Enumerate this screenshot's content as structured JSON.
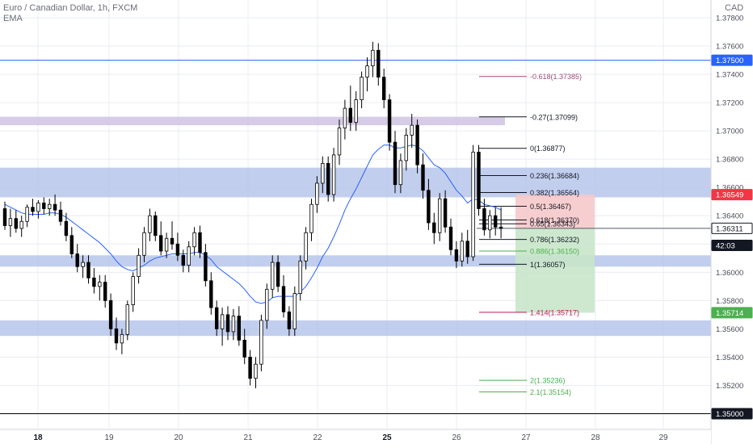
{
  "header": {
    "symbol_line": "Euro / Canadian Dollar, 1h, FXCM",
    "indicator": "EMA",
    "currency": "CAD"
  },
  "colors": {
    "bull": "#ffffff",
    "bear": "#000000",
    "wick": "#000000",
    "ema": "#2962ff",
    "zone_blue": "#b7c6ea",
    "zone_purple": "#cfc3e3",
    "tp_zone": "#c8e6c9",
    "sl_zone": "#f6c9ca",
    "grid": "#e9ecf2",
    "axis_text": "#4a4e59",
    "price_badge": "#2a2e39",
    "line_badge": "#2962ff",
    "high_badge": "#f23645",
    "target_badge": "#4caf50"
  },
  "chart_data": {
    "type": "candlestick",
    "x_axis_labels": [
      "18",
      "19",
      "20",
      "21",
      "22",
      "25",
      "26",
      "27",
      "28",
      "29"
    ],
    "y_axis_ticks": [
      "1.37800",
      "1.37600",
      "1.37400",
      "1.37200",
      "1.37000",
      "1.36800",
      "1.36600",
      "1.36400",
      "1.36200",
      "1.36000",
      "1.35800",
      "1.35600",
      "1.35400",
      "1.35200"
    ],
    "y_range": [
      1.349,
      1.3788
    ],
    "candles": [
      [
        1.3645,
        1.365,
        1.363,
        1.3633
      ],
      [
        1.3633,
        1.3645,
        1.3625,
        1.3638
      ],
      [
        1.3638,
        1.3644,
        1.3628,
        1.3631
      ],
      [
        1.3631,
        1.364,
        1.3625,
        1.3636
      ],
      [
        1.3636,
        1.3648,
        1.3632,
        1.3646
      ],
      [
        1.3646,
        1.3652,
        1.364,
        1.3643
      ],
      [
        1.3643,
        1.3651,
        1.3638,
        1.3649
      ],
      [
        1.3649,
        1.3653,
        1.3641,
        1.3645
      ],
      [
        1.3645,
        1.3652,
        1.364,
        1.3648
      ],
      [
        1.3648,
        1.3655,
        1.364,
        1.3644
      ],
      [
        1.3644,
        1.365,
        1.3633,
        1.3636
      ],
      [
        1.3636,
        1.3642,
        1.3622,
        1.3626
      ],
      [
        1.3626,
        1.3632,
        1.361,
        1.3613
      ],
      [
        1.3613,
        1.362,
        1.36,
        1.3604
      ],
      [
        1.3604,
        1.3612,
        1.3596,
        1.3607
      ],
      [
        1.3607,
        1.3612,
        1.3592,
        1.3596
      ],
      [
        1.3596,
        1.3603,
        1.3585,
        1.359
      ],
      [
        1.359,
        1.3598,
        1.358,
        1.3593
      ],
      [
        1.3593,
        1.3598,
        1.3575,
        1.358
      ],
      [
        1.358,
        1.3585,
        1.3555,
        1.356
      ],
      [
        1.356,
        1.3568,
        1.3545,
        1.355
      ],
      [
        1.355,
        1.356,
        1.3542,
        1.3556
      ],
      [
        1.3556,
        1.358,
        1.3552,
        1.3577
      ],
      [
        1.3577,
        1.36,
        1.3572,
        1.3597
      ],
      [
        1.3597,
        1.3617,
        1.3592,
        1.3612
      ],
      [
        1.3612,
        1.3632,
        1.3607,
        1.3628
      ],
      [
        1.3628,
        1.3645,
        1.3622,
        1.364
      ],
      [
        1.364,
        1.3643,
        1.3622,
        1.3626
      ],
      [
        1.3626,
        1.3636,
        1.3612,
        1.3615
      ],
      [
        1.3615,
        1.3628,
        1.361,
        1.3624
      ],
      [
        1.3624,
        1.3636,
        1.3616,
        1.362
      ],
      [
        1.362,
        1.3628,
        1.3608,
        1.3612
      ],
      [
        1.3612,
        1.3616,
        1.36,
        1.3605
      ],
      [
        1.3605,
        1.3622,
        1.36,
        1.3618
      ],
      [
        1.3618,
        1.3632,
        1.3612,
        1.3628
      ],
      [
        1.3628,
        1.3633,
        1.361,
        1.3614
      ],
      [
        1.3614,
        1.362,
        1.359,
        1.3594
      ],
      [
        1.3594,
        1.36,
        1.357,
        1.3575
      ],
      [
        1.3575,
        1.358,
        1.3555,
        1.356
      ],
      [
        1.356,
        1.3575,
        1.3548,
        1.357
      ],
      [
        1.357,
        1.3576,
        1.3552,
        1.3558
      ],
      [
        1.3558,
        1.3574,
        1.3552,
        1.3569
      ],
      [
        1.3569,
        1.3576,
        1.3548,
        1.3552
      ],
      [
        1.3552,
        1.356,
        1.3535,
        1.354
      ],
      [
        1.354,
        1.3545,
        1.352,
        1.3525
      ],
      [
        1.3525,
        1.354,
        1.3518,
        1.3535
      ],
      [
        1.3535,
        1.357,
        1.353,
        1.3566
      ],
      [
        1.3566,
        1.3592,
        1.356,
        1.3588
      ],
      [
        1.3588,
        1.3612,
        1.3582,
        1.3607
      ],
      [
        1.3607,
        1.3612,
        1.3586,
        1.359
      ],
      [
        1.359,
        1.3598,
        1.3568,
        1.3572
      ],
      [
        1.3572,
        1.3576,
        1.3555,
        1.356
      ],
      [
        1.356,
        1.359,
        1.3555,
        1.3585
      ],
      [
        1.3585,
        1.3612,
        1.358,
        1.3608
      ],
      [
        1.3608,
        1.3632,
        1.3602,
        1.3628
      ],
      [
        1.3628,
        1.3652,
        1.3622,
        1.3648
      ],
      [
        1.3648,
        1.3668,
        1.3642,
        1.3663
      ],
      [
        1.3663,
        1.3682,
        1.3656,
        1.3677
      ],
      [
        1.3677,
        1.3682,
        1.365,
        1.3655
      ],
      [
        1.3655,
        1.3688,
        1.365,
        1.3683
      ],
      [
        1.3683,
        1.3708,
        1.3676,
        1.3702
      ],
      [
        1.3702,
        1.3722,
        1.3694,
        1.3716
      ],
      [
        1.3716,
        1.3732,
        1.37,
        1.3706
      ],
      [
        1.3706,
        1.3728,
        1.37,
        1.3722
      ],
      [
        1.3722,
        1.3742,
        1.3716,
        1.3738
      ],
      [
        1.3738,
        1.3752,
        1.3728,
        1.3746
      ],
      [
        1.3746,
        1.3763,
        1.3738,
        1.3757
      ],
      [
        1.3757,
        1.3762,
        1.3732,
        1.3738
      ],
      [
        1.3738,
        1.3744,
        1.3716,
        1.3722
      ],
      [
        1.3722,
        1.3726,
        1.3686,
        1.3692
      ],
      [
        1.3692,
        1.37,
        1.3656,
        1.3662
      ],
      [
        1.3662,
        1.3684,
        1.3656,
        1.3679
      ],
      [
        1.3679,
        1.3702,
        1.3672,
        1.3697
      ],
      [
        1.3697,
        1.3712,
        1.3688,
        1.3704
      ],
      [
        1.3704,
        1.3708,
        1.367,
        1.3676
      ],
      [
        1.3676,
        1.3684,
        1.3652,
        1.3658
      ],
      [
        1.3658,
        1.3666,
        1.363,
        1.3635
      ],
      [
        1.3635,
        1.3642,
        1.362,
        1.3628
      ],
      [
        1.3628,
        1.3656,
        1.3622,
        1.3652
      ],
      [
        1.3652,
        1.3658,
        1.3628,
        1.3632
      ],
      [
        1.3632,
        1.3638,
        1.3612,
        1.3616
      ],
      [
        1.3616,
        1.3622,
        1.3603,
        1.3608
      ],
      [
        1.3608,
        1.3628,
        1.3604,
        1.3622
      ],
      [
        1.3622,
        1.363,
        1.3606,
        1.3611
      ],
      [
        1.3611,
        1.369,
        1.3608,
        1.3685
      ],
      [
        1.3685,
        1.369,
        1.364,
        1.3645
      ],
      [
        1.3645,
        1.3652,
        1.3626,
        1.363
      ],
      [
        1.363,
        1.3644,
        1.3624,
        1.364
      ],
      [
        1.364,
        1.3646,
        1.3626,
        1.3632
      ],
      [
        1.3632,
        1.3646,
        1.3624,
        1.3631
      ]
    ],
    "ema_values": [
      1.3648,
      1.3646,
      1.3644,
      1.3642,
      1.3641,
      1.3641,
      1.3641,
      1.3641,
      1.3642,
      1.3642,
      1.3641,
      1.3639,
      1.3636,
      1.3633,
      1.363,
      1.3627,
      1.3624,
      1.3621,
      1.3617,
      1.3613,
      1.3608,
      1.3604,
      1.3602,
      1.3601,
      1.3603,
      1.3605,
      1.3608,
      1.361,
      1.3611,
      1.3612,
      1.3613,
      1.3613,
      1.3613,
      1.3613,
      1.3614,
      1.3614,
      1.3612,
      1.3609,
      1.3604,
      1.3601,
      1.3598,
      1.3595,
      1.3592,
      1.3588,
      1.3583,
      1.3579,
      1.3578,
      1.3579,
      1.3582,
      1.3583,
      1.3583,
      1.3583,
      1.3583,
      1.3586,
      1.359,
      1.3596,
      1.3603,
      1.3611,
      1.3617,
      1.3625,
      1.3634,
      1.3644,
      1.3652,
      1.3659,
      1.3667,
      1.3675,
      1.3683,
      1.3687,
      1.369,
      1.369,
      1.3688,
      1.3688,
      1.3689,
      1.369,
      1.3689,
      1.3686,
      1.3681,
      1.3676,
      1.3674,
      1.367,
      1.3664,
      1.3658,
      1.3654,
      1.3649,
      1.3652,
      1.3651,
      1.3648,
      1.3647,
      1.3646,
      1.3644
    ],
    "horizontal_lines": [
      {
        "price": 1.375,
        "label": "1.37500",
        "color": "#2962ff",
        "badge": "#2962ff"
      },
      {
        "price": 1.35,
        "label": "1.35000",
        "color": "#000000",
        "badge": "#131722"
      }
    ],
    "zones": [
      {
        "top": 1.371,
        "bottom": 1.3704,
        "color": "#cfc3e3"
      },
      {
        "top": 1.3674,
        "bottom": 1.3653,
        "color": "#b7c6ea"
      },
      {
        "top": 1.3612,
        "bottom": 1.3604,
        "color": "#b7c6ea"
      },
      {
        "top": 1.3566,
        "bottom": 1.3555,
        "color": "#b7c6ea"
      }
    ],
    "fib_levels": [
      {
        "label": "-0.618(1.37385)",
        "price": 1.37385,
        "color": "#9c4c7c"
      },
      {
        "label": "-0.27(1.37099)",
        "price": 1.37099,
        "color": "#131722"
      },
      {
        "label": "0(1.36877)",
        "price": 1.36877,
        "color": "#131722"
      },
      {
        "label": "0.236(1.36684)",
        "price": 1.36684,
        "color": "#131722"
      },
      {
        "label": "0.382(1.36564)",
        "price": 1.36564,
        "color": "#131722"
      },
      {
        "label": "0.5(1.36467)",
        "price": 1.36467,
        "color": "#131722"
      },
      {
        "label": "0.618(1.36370)",
        "price": 1.3637,
        "color": "#131722"
      },
      {
        "label": "0.65(1.36343)",
        "price": 1.36343,
        "color": "#131722"
      },
      {
        "label": "0.786(1.36232)",
        "price": 1.36232,
        "color": "#131722"
      },
      {
        "label": "0.886(1.36150)",
        "price": 1.3615,
        "color": "#4caf50"
      },
      {
        "label": "1(1.36057)",
        "price": 1.36057,
        "color": "#131722"
      },
      {
        "label": "1.414(1.35717)",
        "price": 1.35717,
        "color": "#c2185b"
      },
      {
        "label": "2(1.35236)",
        "price": 1.35236,
        "color": "#4caf50"
      },
      {
        "label": "2.1(1.35154)",
        "price": 1.35154,
        "color": "#4caf50"
      }
    ],
    "position": {
      "entry": 1.36311,
      "stop": 1.36549,
      "target": 1.35714
    },
    "price_badges": [
      {
        "label": "1.37500",
        "price": 1.375,
        "color": "#2962ff"
      },
      {
        "label": "1.36549",
        "price": 1.36549,
        "color": "#f23645"
      },
      {
        "label": "1.36311",
        "price": 1.36311,
        "color": "#ffffff",
        "text_color": "#131722",
        "border": "#131722"
      },
      {
        "label": "42:03",
        "price": 1.3619,
        "color": "#131722"
      },
      {
        "label": "1.35714",
        "price": 1.35714,
        "color": "#4caf50"
      },
      {
        "label": "1.35000",
        "price": 1.35,
        "color": "#131722"
      }
    ]
  }
}
